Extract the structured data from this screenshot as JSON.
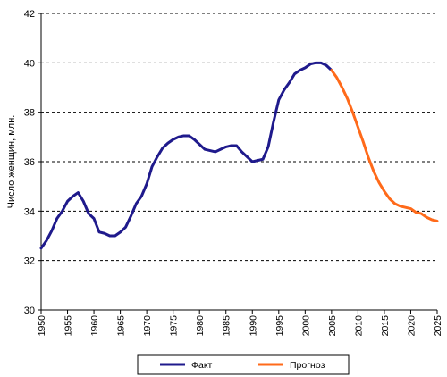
{
  "chart_data": {
    "type": "line",
    "title": "",
    "xlabel": "",
    "ylabel": "Число женщин, млн.",
    "xlim": [
      1950,
      2025
    ],
    "ylim": [
      30,
      42
    ],
    "y_ticks": [
      30,
      32,
      34,
      36,
      38,
      40,
      42
    ],
    "x_ticks": [
      1950,
      1955,
      1960,
      1965,
      1970,
      1975,
      1980,
      1985,
      1990,
      1995,
      2000,
      2005,
      2010,
      2015,
      2020,
      2025
    ],
    "grid": "horizontal dashed",
    "legend": "bottom",
    "series": [
      {
        "name": "Факт",
        "color": "#1f1a8c",
        "x": [
          1950,
          1951,
          1952,
          1953,
          1954,
          1955,
          1956,
          1957,
          1958,
          1959,
          1960,
          1961,
          1962,
          1963,
          1964,
          1965,
          1966,
          1967,
          1968,
          1969,
          1970,
          1971,
          1972,
          1973,
          1974,
          1975,
          1976,
          1977,
          1978,
          1979,
          1980,
          1981,
          1982,
          1983,
          1984,
          1985,
          1986,
          1987,
          1988,
          1989,
          1990,
          1991,
          1992,
          1993,
          1994,
          1995,
          1996,
          1997,
          1998,
          1999,
          2000,
          2001,
          2002,
          2003,
          2004,
          2005
        ],
        "values": [
          32.5,
          32.8,
          33.2,
          33.7,
          34.0,
          34.4,
          34.6,
          34.75,
          34.4,
          33.9,
          33.7,
          33.15,
          33.1,
          33.0,
          33.0,
          33.15,
          33.35,
          33.8,
          34.3,
          34.6,
          35.1,
          35.8,
          36.2,
          36.55,
          36.75,
          36.9,
          37.0,
          37.05,
          37.05,
          36.9,
          36.7,
          36.5,
          36.45,
          36.4,
          36.5,
          36.6,
          36.65,
          36.65,
          36.4,
          36.2,
          36.0,
          36.05,
          36.1,
          36.6,
          37.6,
          38.5,
          38.9,
          39.2,
          39.55,
          39.7,
          39.8,
          39.95,
          40.0,
          40.0,
          39.9,
          39.7
        ]
      },
      {
        "name": "Прогноз",
        "color": "#ff6a1a",
        "x": [
          2005,
          2006,
          2007,
          2008,
          2009,
          2010,
          2011,
          2012,
          2013,
          2014,
          2015,
          2016,
          2017,
          2018,
          2019,
          2020,
          2021,
          2022,
          2023,
          2024,
          2025
        ],
        "values": [
          39.7,
          39.4,
          39.0,
          38.55,
          38.0,
          37.4,
          36.8,
          36.15,
          35.6,
          35.15,
          34.8,
          34.5,
          34.3,
          34.2,
          34.15,
          34.1,
          33.95,
          33.9,
          33.75,
          33.65,
          33.6
        ]
      }
    ]
  }
}
